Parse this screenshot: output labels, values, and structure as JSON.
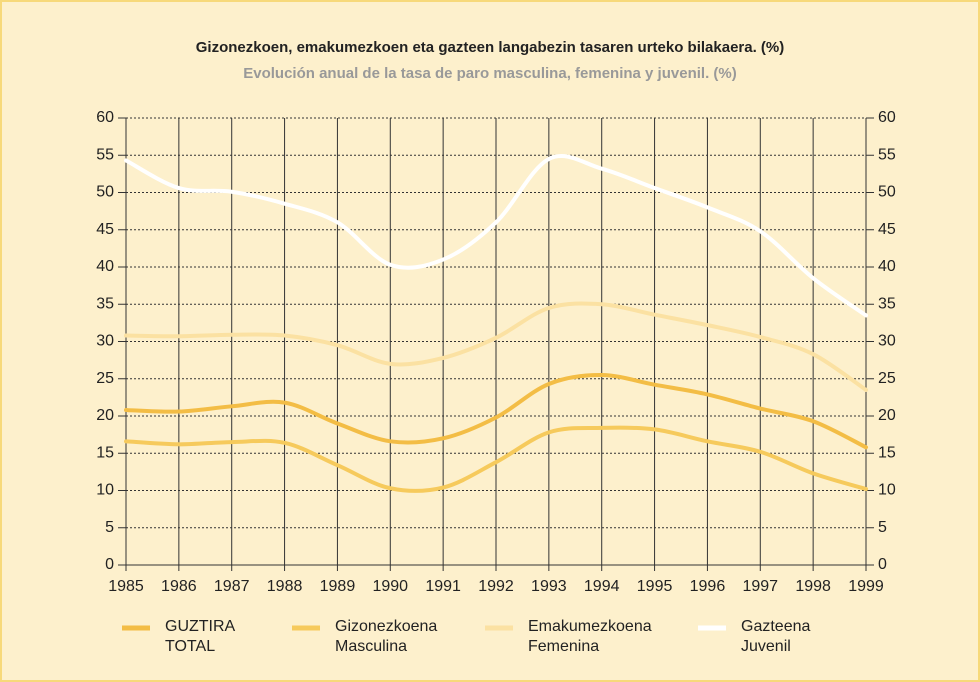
{
  "chart_data": {
    "type": "line",
    "title": "Gizonezkoen, emakumezkoen eta gazteen langabezin tasaren urteko bilakaera. (%)",
    "subtitle": "Evolución anual de la tasa de paro masculina, femenina y juvenil. (%)",
    "x": [
      1985,
      1986,
      1987,
      1988,
      1989,
      1990,
      1991,
      1992,
      1993,
      1994,
      1995,
      1996,
      1997,
      1998,
      1999
    ],
    "xlim": [
      1985,
      1999
    ],
    "xticks": [
      1985,
      1986,
      1987,
      1988,
      1989,
      1990,
      1991,
      1992,
      1993,
      1994,
      1995,
      1996,
      1997,
      1998,
      1999
    ],
    "ylim": [
      0,
      60
    ],
    "yticks": [
      0,
      5,
      10,
      15,
      20,
      25,
      30,
      35,
      40,
      45,
      50,
      55,
      60
    ],
    "grid": true,
    "series": [
      {
        "name": "GUZTIRA",
        "translation": "TOTAL",
        "color": "#f3bd45",
        "values": [
          20.8,
          20.6,
          21.3,
          21.8,
          19.0,
          16.6,
          17.0,
          19.8,
          24.3,
          25.5,
          24.2,
          22.9,
          21.0,
          19.3,
          15.8
        ]
      },
      {
        "name": "Gizonezkoena",
        "translation": "Masculina",
        "color": "#f6ca5c",
        "values": [
          16.6,
          16.2,
          16.5,
          16.4,
          13.4,
          10.3,
          10.4,
          13.8,
          17.8,
          18.4,
          18.2,
          16.6,
          15.2,
          12.3,
          10.2
        ]
      },
      {
        "name": "Emakumezkoena",
        "translation": "Femenina",
        "color": "#fbe1a2",
        "values": [
          30.8,
          30.7,
          30.9,
          30.8,
          29.5,
          27.0,
          27.8,
          30.5,
          34.5,
          35.0,
          33.6,
          32.2,
          30.6,
          28.3,
          23.5
        ]
      },
      {
        "name": "Gazteena",
        "translation": "Juvenil",
        "color": "#ffffff",
        "values": [
          54.3,
          50.6,
          50.1,
          48.5,
          46.0,
          40.3,
          41.0,
          46.0,
          54.5,
          53.2,
          50.6,
          48.0,
          44.8,
          38.5,
          33.5
        ]
      }
    ]
  }
}
